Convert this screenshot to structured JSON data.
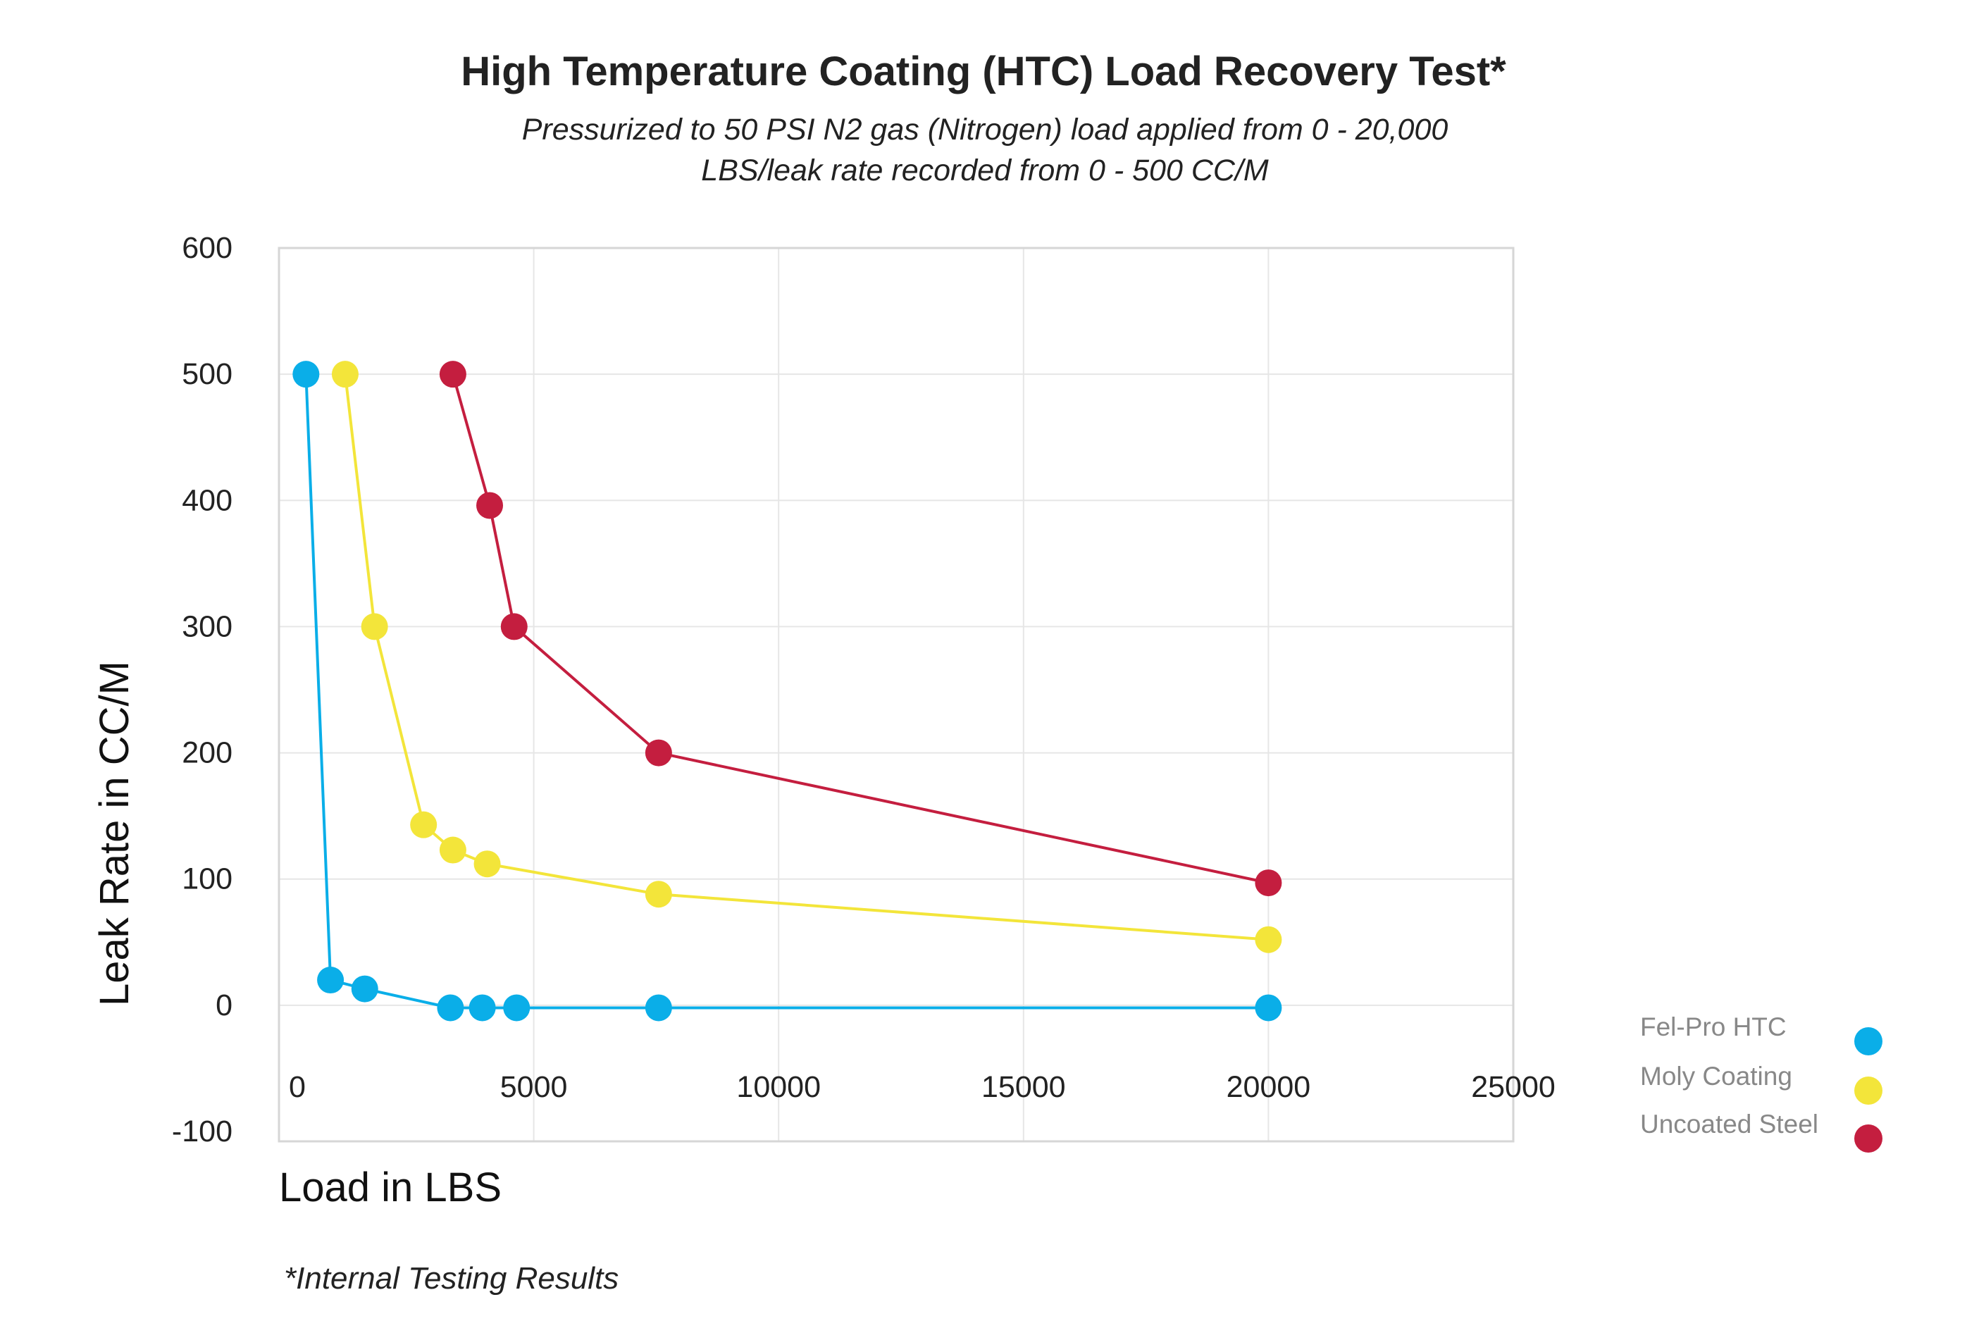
{
  "title": "High Temperature Coating (HTC) Load Recovery Test*",
  "subtitle_line1": "Pressurized to 50 PSI N2 gas (Nitrogen) load applied from 0 - 20,000",
  "subtitle_line2": "LBS/leak rate recorded  from 0 - 500 CC/M",
  "footnote": "*Internal Testing Results",
  "chart_data": {
    "type": "line",
    "title": "High Temperature Coating (HTC) Load Recovery Test*",
    "xlabel": "Load in LBS",
    "ylabel": "Leak Rate in CC/M",
    "xlim": [
      0,
      25000
    ],
    "ylim": [
      -100,
      600
    ],
    "xticks": [
      0,
      5000,
      10000,
      15000,
      20000,
      25000
    ],
    "yticks": [
      -100,
      0,
      100,
      200,
      300,
      400,
      500,
      600
    ],
    "grid": true,
    "legend_position": "right",
    "series": [
      {
        "name": "Fel-Pro HTC",
        "color": "#0aaee8",
        "x": [
          350,
          850,
          1550,
          3300,
          3950,
          4650,
          7550,
          20000
        ],
        "y": [
          500,
          20,
          13,
          -2,
          -2,
          -2,
          -2,
          -2
        ]
      },
      {
        "name": "Moly Coating",
        "color": "#f3e53a",
        "x": [
          1150,
          1750,
          2750,
          3350,
          4050,
          7550,
          20000
        ],
        "y": [
          500,
          300,
          143,
          123,
          112,
          88,
          52
        ]
      },
      {
        "name": "Uncoated Steel",
        "color": "#c41e3f",
        "x": [
          3350,
          4100,
          4600,
          7550,
          20000
        ],
        "y": [
          500,
          396,
          300,
          200,
          97
        ]
      }
    ]
  }
}
